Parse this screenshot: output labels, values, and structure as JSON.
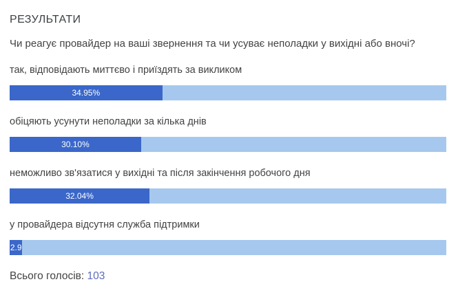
{
  "header": {
    "title": "РЕЗУЛЬТАТИ"
  },
  "question": "Чи реагує провайдер на ваші звернення та чи усуває неполадки у вихідні або вночі?",
  "options": [
    {
      "label": "так, відповідають миттєво і приїздять за викликом",
      "percent_label": "34.95%",
      "percent": 34.95
    },
    {
      "label": "обіцяють усунути неполадки за кілька днів",
      "percent_label": "30.10%",
      "percent": 30.1
    },
    {
      "label": "неможливо зв'язатися у вихідні та після закінчення робочого дня",
      "percent_label": "32.04%",
      "percent": 32.04
    },
    {
      "label": "у провайдера відсутня служба підтримки",
      "percent_label": "2.9",
      "percent": 2.91
    }
  ],
  "footer": {
    "total_label": "Всього голосів:",
    "total_value": "103"
  },
  "colors": {
    "bar_fill": "#3a67c9",
    "bar_track": "#a6c8ee",
    "text": "#424242",
    "title": "#3c4043",
    "total_value": "#5c6bc0",
    "percent_text": "#ffffff"
  },
  "chart_data": {
    "type": "bar",
    "orientation": "horizontal",
    "title": "РЕЗУЛЬТАТИ",
    "subtitle": "Чи реагує провайдер на ваші звернення та чи усуває неполадки у вихідні або вночі?",
    "categories": [
      "так, відповідають миттєво і приїздять за викликом",
      "обіцяють усунути неполадки за кілька днів",
      "неможливо зв'язатися у вихідні та після закінчення робочого дня",
      "у провайдера відсутня служба підтримки"
    ],
    "values": [
      34.95,
      30.1,
      32.04,
      2.91
    ],
    "value_unit": "%",
    "data_labels": [
      "34.95%",
      "30.10%",
      "32.04%",
      "2.9"
    ],
    "xlim": [
      0,
      100
    ],
    "total_votes": 103,
    "grid": false,
    "legend": false
  }
}
